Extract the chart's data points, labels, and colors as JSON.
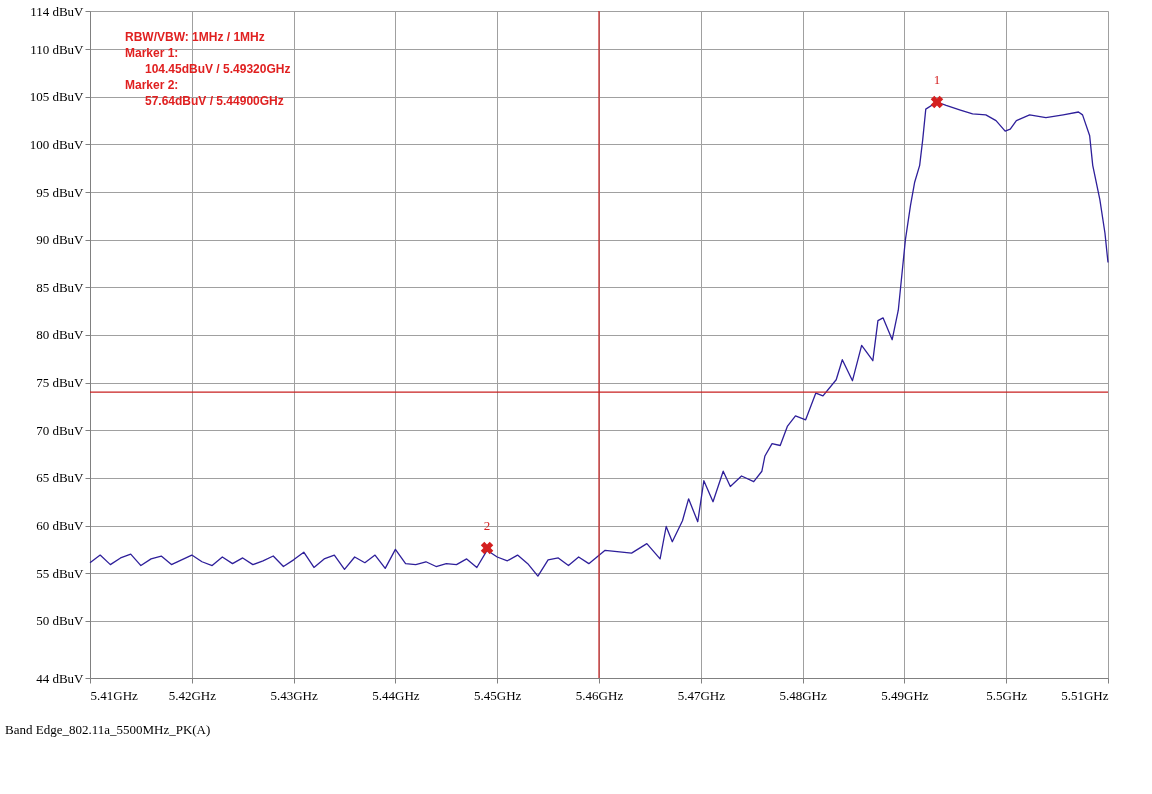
{
  "chart_data": {
    "type": "line",
    "xlim": [
      5.41,
      5.51
    ],
    "ylim": [
      44,
      114
    ],
    "xticks": [
      {
        "value": 5.41,
        "label": "5.41GHz"
      },
      {
        "value": 5.42,
        "label": "5.42GHz"
      },
      {
        "value": 5.43,
        "label": "5.43GHz"
      },
      {
        "value": 5.44,
        "label": "5.44GHz"
      },
      {
        "value": 5.45,
        "label": "5.45GHz"
      },
      {
        "value": 5.46,
        "label": "5.46GHz"
      },
      {
        "value": 5.47,
        "label": "5.47GHz"
      },
      {
        "value": 5.48,
        "label": "5.48GHz"
      },
      {
        "value": 5.49,
        "label": "5.49GHz"
      },
      {
        "value": 5.5,
        "label": "5.5GHz"
      },
      {
        "value": 5.51,
        "label": "5.51GHz"
      }
    ],
    "yticks": [
      {
        "value": 44,
        "label": "44 dBuV"
      },
      {
        "value": 50,
        "label": "50 dBuV"
      },
      {
        "value": 55,
        "label": "55 dBuV"
      },
      {
        "value": 60,
        "label": "60 dBuV"
      },
      {
        "value": 65,
        "label": "65 dBuV"
      },
      {
        "value": 70,
        "label": "70 dBuV"
      },
      {
        "value": 75,
        "label": "75 dBuV"
      },
      {
        "value": 80,
        "label": "80 dBuV"
      },
      {
        "value": 85,
        "label": "85 dBuV"
      },
      {
        "value": 90,
        "label": "90 dBuV"
      },
      {
        "value": 95,
        "label": "95 dBuV"
      },
      {
        "value": 100,
        "label": "100 dBuV"
      },
      {
        "value": 105,
        "label": "105 dBuV"
      },
      {
        "value": 110,
        "label": "110 dBuV"
      },
      {
        "value": 114,
        "label": "114 dBuV"
      }
    ],
    "grid": true,
    "series": [
      {
        "color": "#2e1f9a",
        "marker": "none",
        "line_style": "solid",
        "x": [
          5.41,
          5.411,
          5.412,
          5.413,
          5.414,
          5.415,
          5.416,
          5.417,
          5.418,
          5.419,
          5.42,
          5.421,
          5.422,
          5.423,
          5.424,
          5.425,
          5.426,
          5.427,
          5.428,
          5.429,
          5.43,
          5.431,
          5.432,
          5.433,
          5.434,
          5.435,
          5.436,
          5.437,
          5.438,
          5.439,
          5.44,
          5.441,
          5.442,
          5.443,
          5.444,
          5.445,
          5.446,
          5.447,
          5.448,
          5.449,
          5.45,
          5.451,
          5.452,
          5.453,
          5.454,
          5.455,
          5.456,
          5.457,
          5.458,
          5.459,
          5.4606,
          5.4632,
          5.4647,
          5.466,
          5.4666,
          5.4672,
          5.4682,
          5.4688,
          5.4697,
          5.4703,
          5.4712,
          5.4722,
          5.4729,
          5.474,
          5.4752,
          5.476,
          5.4763,
          5.477,
          5.4778,
          5.4785,
          5.4793,
          5.4803,
          5.4813,
          5.482,
          5.4833,
          5.4839,
          5.4849,
          5.4858,
          5.4869,
          5.4874,
          5.4879,
          5.4888,
          5.4894,
          5.4901,
          5.4906,
          5.491,
          5.4915,
          5.4918,
          5.4921,
          5.4932,
          5.4941,
          5.4955,
          5.4967,
          5.498,
          5.499,
          5.4999,
          5.5004,
          5.501,
          5.5023,
          5.5039,
          5.5056,
          5.5071,
          5.5075,
          5.5082,
          5.5085,
          5.5092,
          5.5097,
          5.51
        ],
        "values": [
          56.1,
          56.9,
          55.9,
          56.6,
          57.0,
          55.8,
          56.5,
          56.8,
          55.9,
          56.4,
          56.9,
          56.2,
          55.8,
          56.7,
          56.0,
          56.6,
          55.9,
          56.3,
          56.8,
          55.7,
          56.4,
          57.2,
          55.6,
          56.5,
          56.9,
          55.4,
          56.7,
          56.1,
          56.9,
          55.5,
          57.5,
          56.0,
          55.9,
          56.2,
          55.7,
          56.0,
          55.9,
          56.5,
          55.6,
          57.4,
          56.7,
          56.3,
          56.9,
          56.0,
          54.7,
          56.4,
          56.6,
          55.8,
          56.7,
          56.0,
          57.4,
          57.1,
          58.1,
          56.5,
          59.9,
          58.3,
          60.5,
          62.8,
          60.4,
          64.7,
          62.5,
          65.7,
          64.1,
          65.2,
          64.6,
          65.7,
          67.3,
          68.6,
          68.4,
          70.4,
          71.5,
          71.1,
          73.9,
          73.6,
          75.3,
          77.4,
          75.2,
          78.9,
          77.3,
          81.5,
          81.8,
          79.5,
          82.6,
          90.0,
          93.6,
          96.0,
          97.8,
          100.5,
          103.7,
          104.45,
          104.1,
          103.6,
          103.2,
          103.1,
          102.5,
          101.4,
          101.6,
          102.5,
          103.1,
          102.8,
          103.1,
          103.4,
          103.1,
          100.9,
          97.8,
          94.2,
          90.7,
          87.6
        ]
      },
      {
        "type": "scatter",
        "color": "#d42020",
        "marker": "cross",
        "x": [
          5.4932,
          5.449
        ],
        "values": [
          104.45,
          57.64
        ]
      }
    ],
    "ref_lines": [
      {
        "axis": "y",
        "value": 74,
        "color": "#c82020"
      },
      {
        "axis": "x",
        "value": 5.46,
        "color": "#c82020"
      }
    ],
    "annotations": [
      {
        "text": "1",
        "x": 5.4932,
        "y": 104.45
      },
      {
        "text": "2",
        "x": 5.449,
        "y": 57.64
      },
      "RBW/VBW: 1MHz / 1MHz",
      "Marker 1:",
      "104.45dBuV / 5.49320GHz",
      "Marker 2:",
      "57.64dBuV / 5.44900GHz",
      "Band Edge_802.11a_5500MHz_PK(A)"
    ]
  }
}
